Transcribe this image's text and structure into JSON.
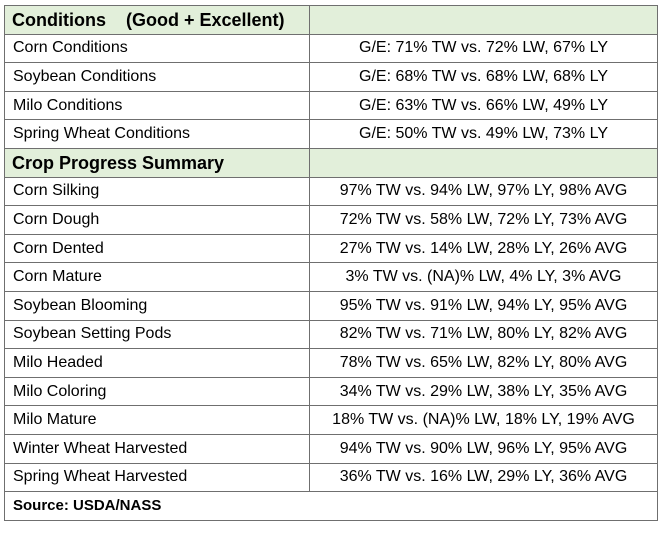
{
  "conditions": {
    "title": "Conditions",
    "title_suffix": "(Good + Excellent)",
    "rows": [
      {
        "label": "Corn Conditions",
        "value": "G/E: 71% TW vs. 72% LW, 67% LY"
      },
      {
        "label": "Soybean Conditions",
        "value": "G/E: 68% TW vs. 68% LW, 68% LY"
      },
      {
        "label": "Milo Conditions",
        "value": "G/E: 63% TW vs. 66% LW, 49% LY"
      },
      {
        "label": "Spring Wheat Conditions",
        "value": "G/E: 50% TW vs. 49% LW, 73% LY"
      }
    ]
  },
  "progress": {
    "title": "Crop Progress Summary",
    "rows": [
      {
        "label": "Corn Silking",
        "value": "97% TW vs. 94% LW, 97% LY, 98% AVG"
      },
      {
        "label": "Corn Dough",
        "value": "72% TW vs. 58% LW, 72% LY, 73% AVG"
      },
      {
        "label": "Corn Dented",
        "value": "27% TW vs. 14% LW, 28% LY, 26% AVG"
      },
      {
        "label": "Corn Mature",
        "value": "3% TW vs. (NA)% LW, 4% LY, 3% AVG"
      },
      {
        "label": "Soybean Blooming",
        "value": "95% TW vs. 91% LW, 94% LY, 95% AVG"
      },
      {
        "label": "Soybean Setting Pods",
        "value": "82% TW vs. 71% LW, 80% LY, 82% AVG"
      },
      {
        "label": "Milo Headed",
        "value": "78% TW vs. 65% LW, 82% LY, 80% AVG"
      },
      {
        "label": "Milo Coloring",
        "value": "34% TW vs. 29% LW, 38% LY, 35% AVG"
      },
      {
        "label": "Milo Mature",
        "value": "18% TW vs. (NA)% LW, 18% LY, 19% AVG"
      },
      {
        "label": "Winter Wheat Harvested",
        "value": "94% TW vs. 90% LW, 96% LY, 95% AVG"
      },
      {
        "label": "Spring Wheat Harvested",
        "value": "36% TW vs. 16% LW, 29% LY, 36% AVG"
      }
    ]
  },
  "source": "Source: USDA/NASS",
  "colors": {
    "section_header_bg": "#e2efda",
    "border": "#6f6f6f"
  }
}
